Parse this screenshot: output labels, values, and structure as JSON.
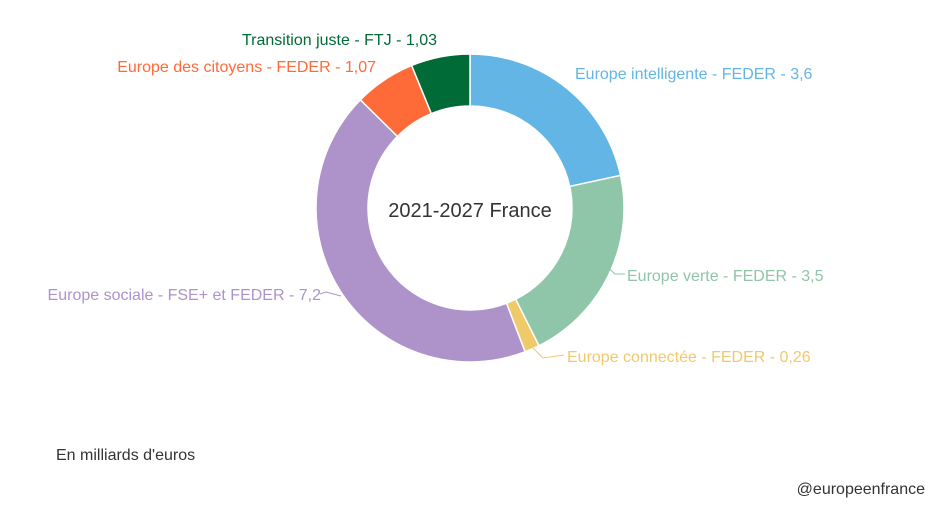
{
  "chart_data": {
    "type": "pie",
    "donut": true,
    "center_title": "2021-2027 France",
    "unit_note": "En milliards d'euros",
    "slices": [
      {
        "name": "Europe intelligente - FEDER",
        "label": "Europe intelligente - FEDER - 3,6",
        "value": 3.6,
        "color": "#62b5e5"
      },
      {
        "name": "Europe verte - FEDER",
        "label": "Europe verte - FEDER - 3,5",
        "value": 3.5,
        "color": "#8fc5a8"
      },
      {
        "name": "Europe connectée - FEDER",
        "label": "Europe connectée - FEDER - 0,26",
        "value": 0.26,
        "color": "#f0c96b"
      },
      {
        "name": "Europe sociale - FSE+ et FEDER",
        "label": "Europe sociale - FSE+ et FEDER - 7,2",
        "value": 7.2,
        "color": "#ad93ca"
      },
      {
        "name": "Europe des citoyens - FEDER",
        "label": "Europe des citoyens - FEDER - 1,07",
        "value": 1.07,
        "color": "#ff6a39"
      },
      {
        "name": "Transition juste - FTJ",
        "label": "Transition juste - FTJ - 1,03",
        "value": 1.03,
        "color": "#006b36"
      }
    ]
  },
  "credit": "@europeenfrance"
}
